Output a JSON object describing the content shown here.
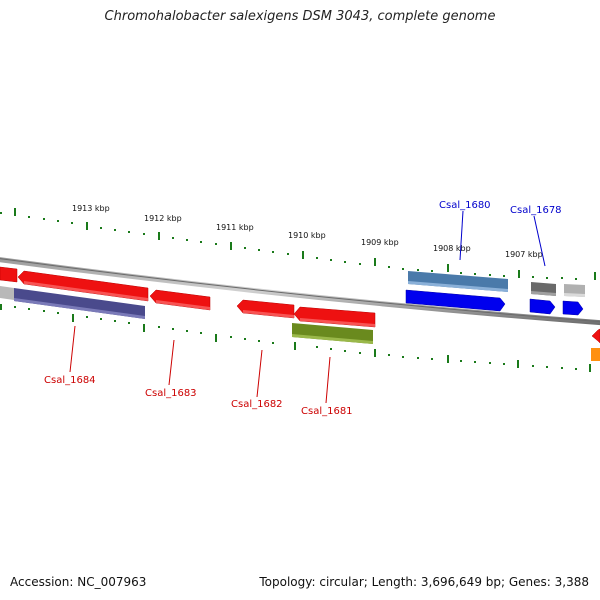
{
  "title": "Chromohalobacter salexigens DSM 3043, complete genome",
  "footer": {
    "accession": "Accession: NC_007963",
    "stats": "Topology: circular; Length: 3,696,649 bp; Genes: 3,388"
  },
  "ticks": [
    "1913 kbp",
    "1912 kbp",
    "1911 kbp",
    "1910 kbp",
    "1909 kbp",
    "1908 kbp",
    "1907 kbp"
  ],
  "gene_labels": {
    "top": [
      "Csal_1680",
      "Csal_1678"
    ],
    "bottom": [
      "Csal_1684",
      "Csal_1683",
      "Csal_1682",
      "Csal_1681"
    ]
  },
  "colors": {
    "forward_cds": "#0000ee",
    "reverse_cds": "#ee0000",
    "top_label": "#0000cc",
    "bottom_label": "#cc0000",
    "tick": "#1a7a1a",
    "backbone": "#808080"
  }
}
